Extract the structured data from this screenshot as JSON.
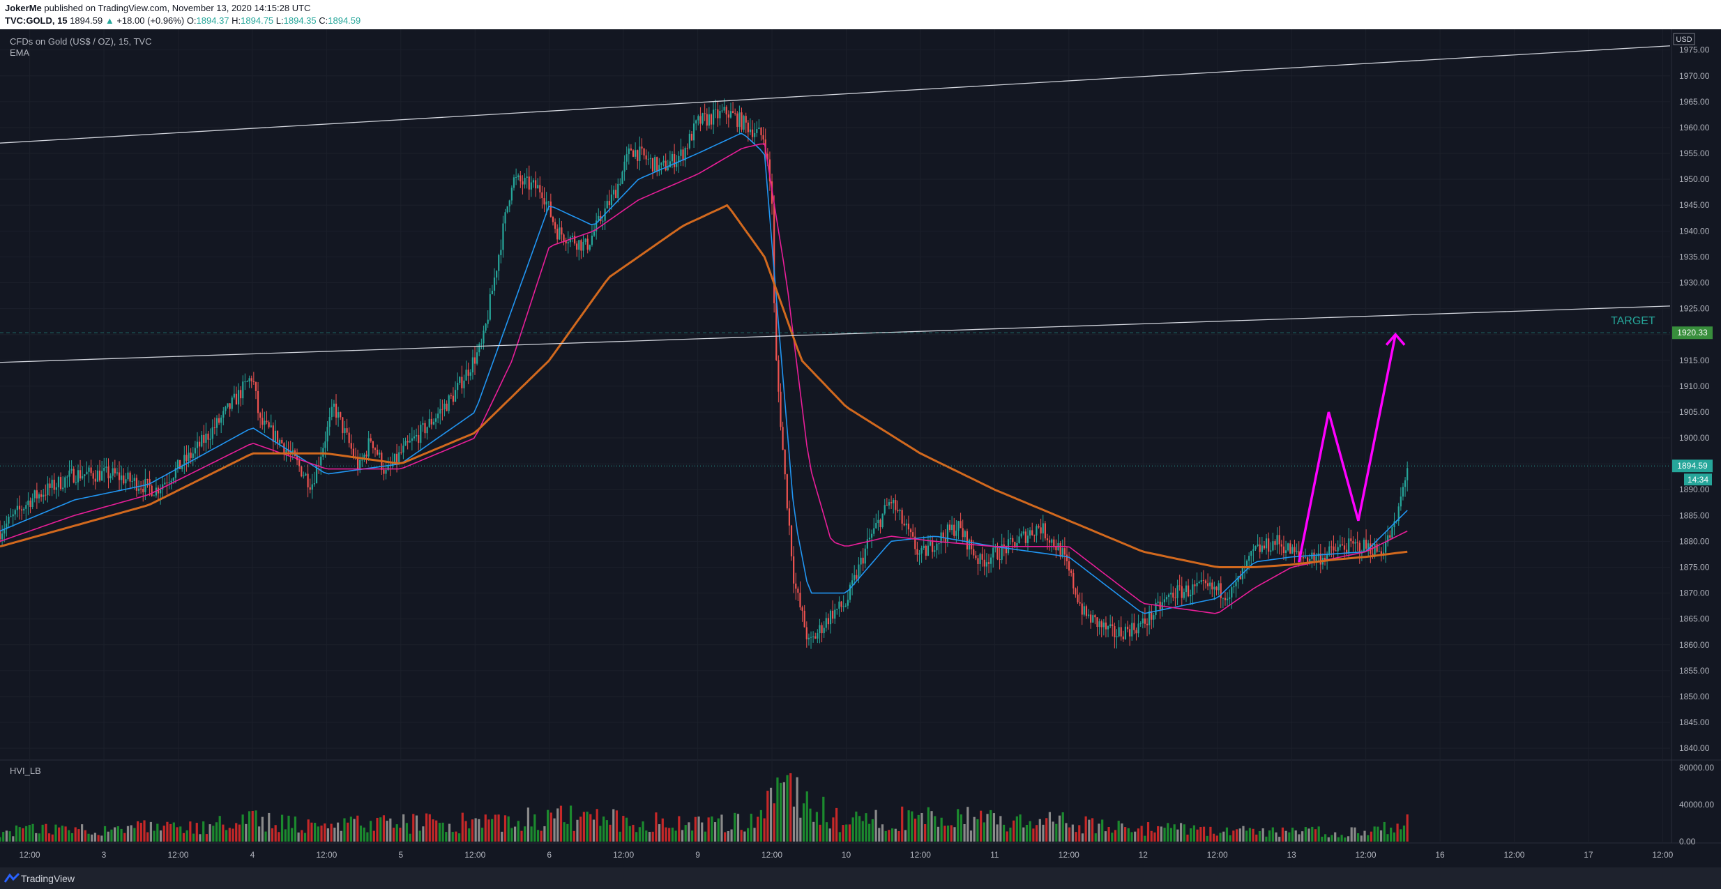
{
  "header": {
    "author": "JokerMe",
    "published_text": "published on TradingView.com, November 13, 2020 14:15:28 UTC",
    "symbol": "TVC:GOLD, 15",
    "last": "1894.59",
    "change_arrow": "▲",
    "change": "+18.00 (+0.96%)",
    "o_label": "O:",
    "o": "1894.37",
    "h_label": "H:",
    "h": "1894.75",
    "l_label": "L:",
    "l": "1894.35",
    "c_label": "C:",
    "c": "1894.59"
  },
  "legend": {
    "title": "CFDs on Gold (US$ / OZ), 15, TVC",
    "indicator": "EMA",
    "volume_indicator": "HVI_LB"
  },
  "footer": {
    "brand": "TradingView"
  },
  "colors": {
    "background": "#131722",
    "ema_fast": "#2196f3",
    "ema_mid": "#e91e99",
    "ema_slow": "#d2691e",
    "projection": "#ff00ff",
    "candle_up": "#26a69a",
    "candle_down": "#ef5350",
    "target": "#26a69a"
  },
  "chart_data": [
    {
      "type": "line",
      "title": "CFDs on Gold (US$ / OZ), 15, TVC",
      "currency": "USD",
      "ylim": [
        1838,
        1979
      ],
      "y_ticks": [
        1840,
        1845,
        1850,
        1855,
        1860,
        1865,
        1870,
        1875,
        1880,
        1885,
        1890,
        1895,
        1900,
        1905,
        1910,
        1915,
        1920,
        1925,
        1930,
        1935,
        1940,
        1945,
        1950,
        1955,
        1960,
        1965,
        1970,
        1975
      ],
      "x_ticks": [
        "12:00",
        "3",
        "12:00",
        "4",
        "12:00",
        "5",
        "12:00",
        "6",
        "12:00",
        "9",
        "12:00",
        "10",
        "12:00",
        "11",
        "12:00",
        "12",
        "12:00",
        "13",
        "12:00",
        "16",
        "12:00",
        "17",
        "12:00"
      ],
      "x_tick_index": [
        0.5,
        1,
        1.5,
        2,
        2.5,
        3,
        3.5,
        4,
        4.5,
        5,
        5.5,
        6,
        6.5,
        7,
        7.5,
        8,
        8.5,
        9,
        9.5,
        10,
        10.5,
        11,
        11.5
      ],
      "xlim": [
        0.3,
        11.55
      ],
      "price_path": {
        "x": [
          0.3,
          0.5,
          0.8,
          1.05,
          1.35,
          1.6,
          1.8,
          2.0,
          2.05,
          2.2,
          2.4,
          2.55,
          2.72,
          2.8,
          2.9,
          3.0,
          3.2,
          3.35,
          3.55,
          3.75,
          3.95,
          4.05,
          4.25,
          4.45,
          4.55,
          4.75,
          4.9,
          5.0,
          5.2,
          5.35,
          5.45,
          5.5,
          5.52,
          5.58,
          5.65,
          5.75,
          5.9,
          6.0,
          6.15,
          6.3,
          6.5,
          6.6,
          6.75,
          6.9,
          7.1,
          7.3,
          7.45,
          7.6,
          7.8,
          8.0,
          8.2,
          8.4,
          8.6,
          8.75,
          8.9,
          9.05,
          9.2,
          9.35,
          9.5,
          9.6,
          9.7,
          9.78
        ],
        "y": [
          1882,
          1888,
          1893,
          1893,
          1890,
          1897,
          1904,
          1912,
          1903,
          1899,
          1891,
          1906,
          1894,
          1900,
          1893,
          1897,
          1903,
          1908,
          1918,
          1950,
          1948,
          1940,
          1937,
          1948,
          1956,
          1952,
          1955,
          1961,
          1963,
          1960,
          1958,
          1946,
          1918,
          1895,
          1872,
          1860,
          1866,
          1868,
          1880,
          1888,
          1877,
          1880,
          1883,
          1876,
          1879,
          1883,
          1878,
          1866,
          1862,
          1864,
          1870,
          1871,
          1870,
          1878,
          1880,
          1877,
          1877,
          1879,
          1879,
          1878,
          1883,
          1894.59
        ]
      },
      "series": [
        {
          "name": "EMA",
          "x": [
            0.3,
            0.8,
            1.3,
            2.0,
            2.5,
            3.0,
            3.5,
            3.75,
            4.0,
            4.3,
            4.6,
            5.0,
            5.3,
            5.45,
            5.55,
            5.65,
            5.75,
            6.0,
            6.3,
            6.6,
            7.0,
            7.5,
            8.0,
            8.5,
            8.75,
            9.0,
            9.5,
            9.78
          ],
          "y": [
            1882,
            1888,
            1891,
            1902,
            1893,
            1895,
            1905,
            1925,
            1945,
            1941,
            1950,
            1955,
            1959,
            1955,
            1920,
            1885,
            1870,
            1870,
            1880,
            1881,
            1879,
            1877,
            1866,
            1869,
            1876,
            1877,
            1878,
            1886
          ]
        },
        {
          "name": "",
          "x": [
            0.3,
            0.8,
            1.3,
            2.0,
            2.5,
            3.0,
            3.5,
            3.75,
            4.0,
            4.3,
            4.6,
            5.0,
            5.3,
            5.45,
            5.6,
            5.75,
            5.9,
            6.0,
            6.3,
            6.6,
            7.0,
            7.5,
            8.0,
            8.5,
            8.75,
            9.0,
            9.5,
            9.78
          ],
          "y": [
            1880,
            1885,
            1889,
            1899,
            1894,
            1894,
            1900,
            1915,
            1937,
            1940,
            1946,
            1951,
            1956,
            1957,
            1930,
            1895,
            1880,
            1879,
            1881,
            1880,
            1879,
            1879,
            1868,
            1866,
            1871,
            1875,
            1878,
            1882
          ]
        },
        {
          "name": "",
          "x": [
            0.3,
            0.8,
            1.3,
            2.0,
            2.5,
            3.0,
            3.5,
            4.0,
            4.4,
            4.9,
            5.2,
            5.45,
            5.7,
            6.0,
            6.5,
            7.0,
            7.5,
            8.0,
            8.5,
            8.75,
            9.0,
            9.3,
            9.5,
            9.78
          ],
          "y": [
            1879,
            1883,
            1887,
            1897,
            1897,
            1895,
            1901,
            1915,
            1931,
            1941,
            1945,
            1935,
            1915,
            1906,
            1897,
            1890,
            1884,
            1878,
            1875,
            1875,
            1875.5,
            1876.5,
            1877,
            1878
          ]
        }
      ],
      "trendlines": [
        {
          "x": [
            0.3,
            11.55
          ],
          "y": [
            1957,
            1975.8
          ]
        },
        {
          "x": [
            0.3,
            11.55
          ],
          "y": [
            1914.6,
            1925.5
          ]
        }
      ],
      "projection": {
        "x": [
          9.05,
          9.25,
          9.45,
          9.7
        ],
        "y": [
          1876,
          1905,
          1884,
          1920
        ]
      },
      "annotations": [
        {
          "text": "TARGET",
          "x": 11.45,
          "y": 1922
        }
      ],
      "target_price": 1920.33,
      "last_price": 1894.59,
      "countdown": "14:34"
    },
    {
      "type": "bar",
      "title": "HVI_LB",
      "ylim": [
        0,
        86000
      ],
      "y_ticks": [
        0,
        40000,
        80000
      ],
      "y_tick_labels": [
        "0.00",
        "40000.00",
        "80000.00"
      ],
      "xlim": [
        0.3,
        11.55
      ],
      "volume_profile": {
        "x": [
          0.3,
          1.0,
          1.6,
          2.0,
          2.5,
          3.0,
          3.5,
          4.0,
          4.5,
          5.0,
          5.4,
          5.52,
          5.6,
          5.75,
          6.0,
          6.5,
          7.0,
          7.5,
          8.0,
          8.5,
          9.0,
          9.5,
          9.78
        ],
        "y": [
          12000,
          16000,
          15000,
          24000,
          18000,
          20000,
          22000,
          28000,
          23000,
          20000,
          24000,
          70000,
          55000,
          40000,
          22000,
          28000,
          24000,
          22000,
          15000,
          12000,
          12000,
          10000,
          20000
        ]
      }
    }
  ]
}
